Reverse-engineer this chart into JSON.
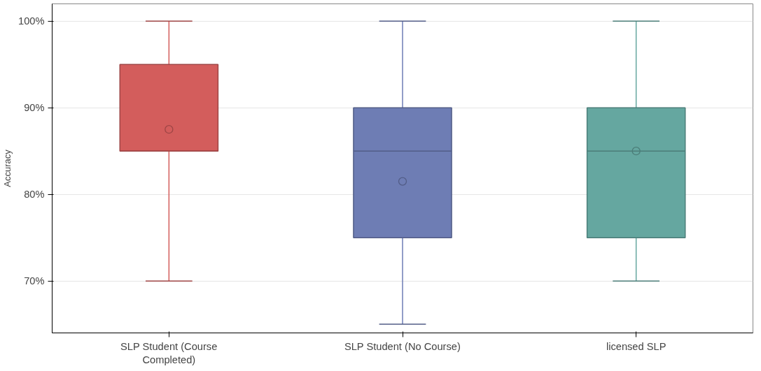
{
  "chart_data": {
    "type": "box",
    "ylabel": "Accuracy",
    "categories": [
      "SLP Student (Course Completed)",
      "SLP Student (No Course)",
      "licensed SLP"
    ],
    "boxes": [
      {
        "low": 70,
        "q1": 85,
        "median": 85,
        "q3": 95,
        "high": 100,
        "mean": 87.5
      },
      {
        "low": 65,
        "q1": 75,
        "median": 85,
        "q3": 90,
        "high": 100,
        "mean": 81.5
      },
      {
        "low": 70,
        "q1": 75,
        "median": 85,
        "q3": 90,
        "high": 100,
        "mean": 85
      }
    ],
    "colors": [
      "#d35d5c",
      "#6e7db4",
      "#65a7a0"
    ],
    "ylim": [
      64,
      102
    ],
    "yticks": [
      {
        "value": 70,
        "label": "70%"
      },
      {
        "value": 80,
        "label": "80%"
      },
      {
        "value": 90,
        "label": "90%"
      },
      {
        "value": 100,
        "label": "100%"
      }
    ],
    "grid": "y"
  }
}
